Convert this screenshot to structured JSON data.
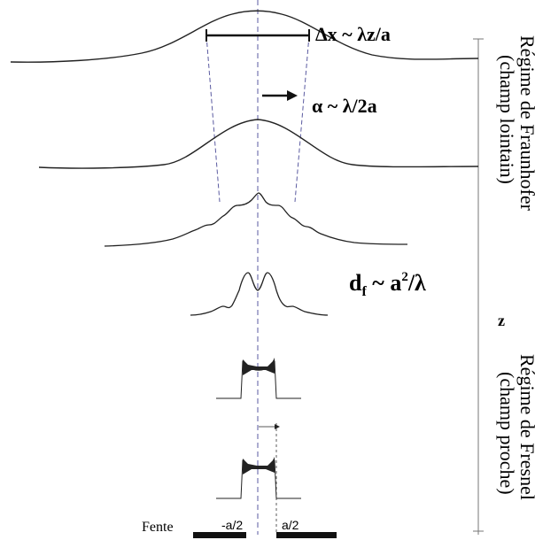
{
  "labels": {
    "delta_x": "Δx ~ λz/a",
    "alpha": "α ~ λ/2a",
    "d_f_main": "d",
    "d_f_sub": "f",
    "d_f_tilde": " ~ a",
    "d_f_sup": "2",
    "d_f_tail": "/λ",
    "z_axis": "z",
    "fraunhofer_line1": "Régime de Fraunhofer",
    "fraunhofer_line2": "(champ lointain)",
    "fresnel_line1": "Régime de Fresnel",
    "fresnel_line2": "(champ proche)",
    "fente": "Fente",
    "minus_a_half": "-a/2",
    "plus_a_half": "a/2"
  },
  "colors": {
    "curve": "#222222",
    "dashed": "#5a5aa0",
    "axis": "#777777",
    "text": "#000000"
  }
}
